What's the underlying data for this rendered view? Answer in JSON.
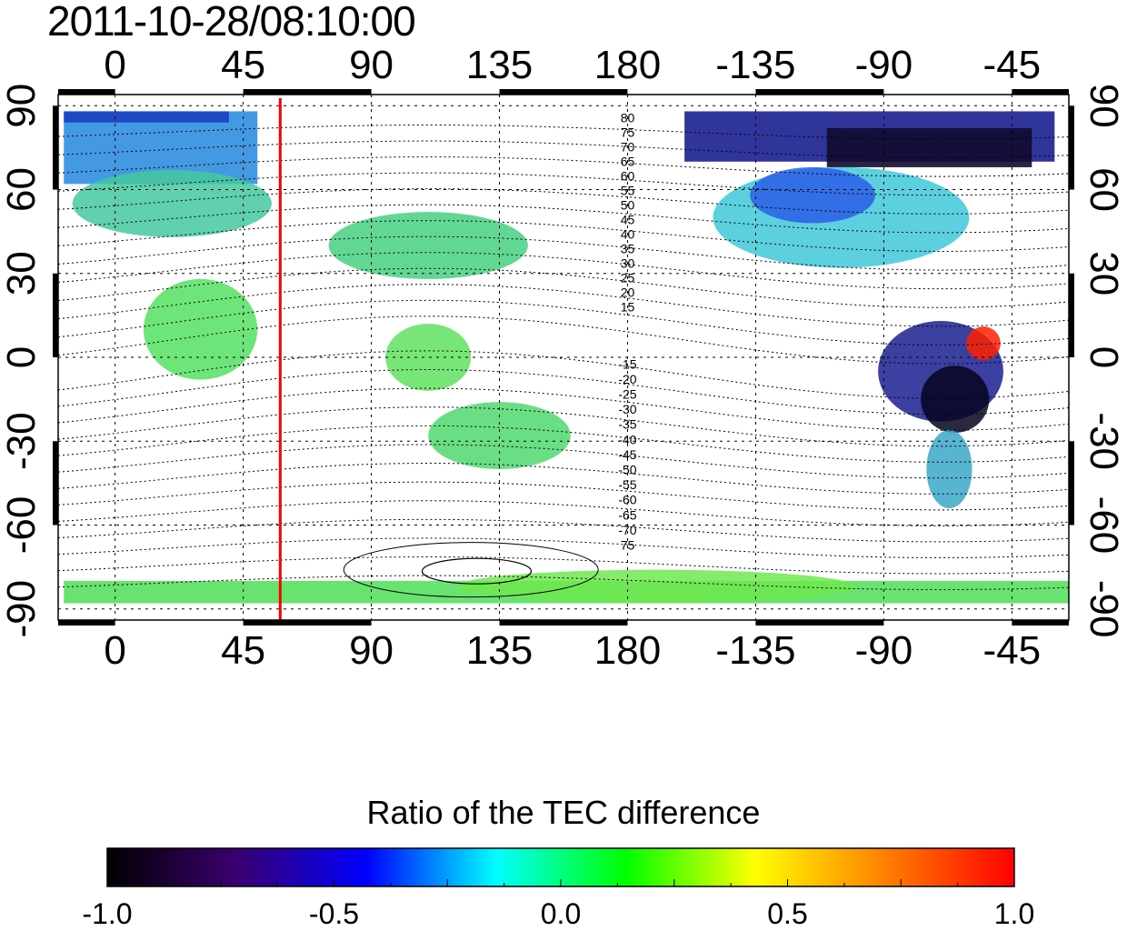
{
  "title": "2011-10-28/08:10:00",
  "map": {
    "longitude_ticks": [
      "0",
      "45",
      "90",
      "135",
      "180",
      "-135",
      "-90",
      "-45"
    ],
    "longitude_values": [
      0,
      45,
      90,
      135,
      180,
      225,
      270,
      315
    ],
    "latitude_ticks_left": [
      "90",
      "60",
      "30",
      "0",
      "-30",
      "-60",
      "-90"
    ],
    "latitude_ticks_right": [
      "90",
      "60",
      "30",
      "0",
      "-30",
      "-60",
      "-90"
    ],
    "latitude_values": [
      90,
      60,
      30,
      0,
      -30,
      -60,
      -90
    ],
    "lon_range": [
      -20,
      335
    ],
    "lat_range": [
      -94,
      94
    ],
    "marker_longitude": 58,
    "marker_color": "#ff0000",
    "contour_labels_north": [
      "80",
      "75",
      "70",
      "65",
      "60",
      "55",
      "50",
      "45",
      "40",
      "35",
      "30",
      "25",
      "20",
      "15"
    ],
    "contour_labels_south": [
      "-15",
      "-20",
      "-25",
      "-30",
      "-35",
      "-40",
      "-45",
      "-50",
      "-55",
      "-60",
      "-65",
      "-70",
      "75"
    ]
  },
  "colorbar": {
    "title": "Ratio of the TEC difference",
    "ticks": [
      "-1.0",
      "-0.5",
      "0.0",
      "0.5",
      "1.0"
    ],
    "range": [
      -1.0,
      1.0
    ],
    "colors": [
      "#000000",
      "#3a0070",
      "#0000ff",
      "#00ffff",
      "#00ff00",
      "#ffff00",
      "#ff8000",
      "#ff0000"
    ]
  }
}
